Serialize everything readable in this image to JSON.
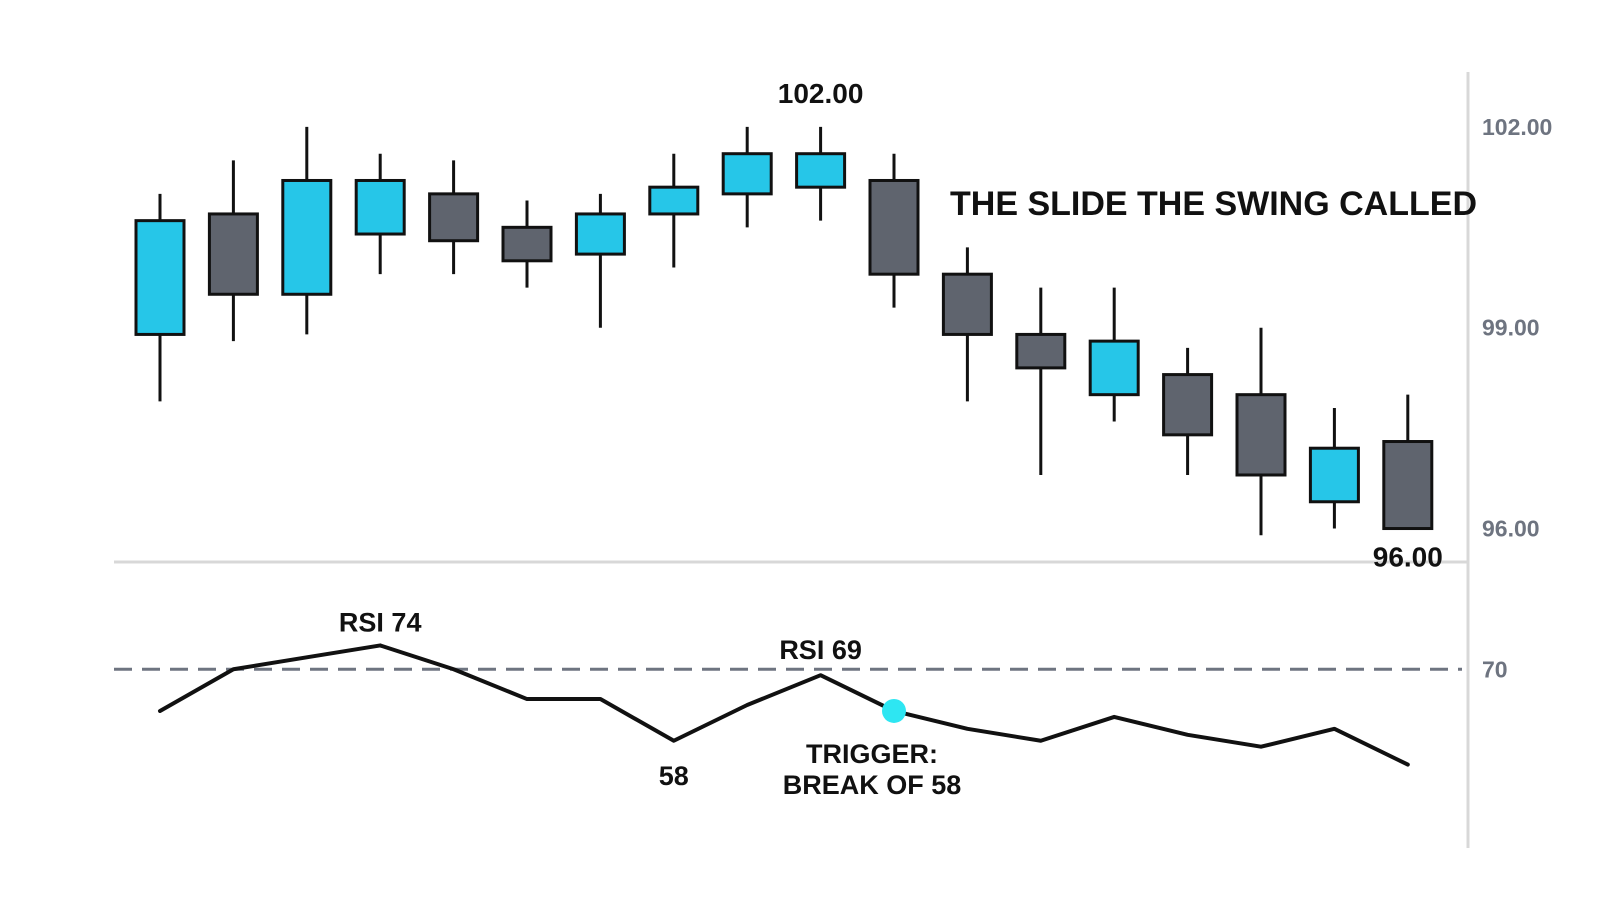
{
  "colors": {
    "bull": "#26c6e8",
    "bear": "#5f646e",
    "outline": "#111111",
    "rsi_line": "#111111",
    "threshold_line": "#6e7480",
    "marker": "#2ee6f2",
    "axis": "#d8d8d8",
    "tick_text": "#6e7480"
  },
  "chart_data": [
    {
      "type": "candlestick",
      "title": "THE SLIDE THE SWING CALLED",
      "x": [
        1,
        2,
        3,
        4,
        5,
        6,
        7,
        8,
        9,
        10,
        11,
        12,
        13,
        14,
        15,
        16,
        17,
        18
      ],
      "candles": [
        {
          "open": 98.9,
          "high": 101.0,
          "low": 97.9,
          "close": 100.6
        },
        {
          "open": 100.7,
          "high": 101.5,
          "low": 98.8,
          "close": 99.5
        },
        {
          "open": 99.5,
          "high": 102.0,
          "low": 98.9,
          "close": 101.2
        },
        {
          "open": 100.4,
          "high": 101.6,
          "low": 99.8,
          "close": 101.2
        },
        {
          "open": 101.0,
          "high": 101.5,
          "low": 99.8,
          "close": 100.3
        },
        {
          "open": 100.5,
          "high": 100.9,
          "low": 99.6,
          "close": 100.0
        },
        {
          "open": 100.1,
          "high": 101.0,
          "low": 99.0,
          "close": 100.7
        },
        {
          "open": 100.7,
          "high": 101.6,
          "low": 99.9,
          "close": 101.1
        },
        {
          "open": 101.0,
          "high": 102.0,
          "low": 100.5,
          "close": 101.6
        },
        {
          "open": 101.1,
          "high": 102.0,
          "low": 100.6,
          "close": 101.6
        },
        {
          "open": 101.2,
          "high": 101.6,
          "low": 99.3,
          "close": 99.8
        },
        {
          "open": 99.8,
          "high": 100.2,
          "low": 97.9,
          "close": 98.9
        },
        {
          "open": 98.9,
          "high": 99.6,
          "low": 96.8,
          "close": 98.4
        },
        {
          "open": 98.0,
          "high": 99.6,
          "low": 97.6,
          "close": 98.8
        },
        {
          "open": 98.3,
          "high": 98.7,
          "low": 96.8,
          "close": 97.4
        },
        {
          "open": 98.0,
          "high": 99.0,
          "low": 95.9,
          "close": 96.8
        },
        {
          "open": 96.4,
          "high": 97.8,
          "low": 96.0,
          "close": 97.2
        },
        {
          "open": 97.3,
          "high": 98.0,
          "low": 96.0,
          "close": 96.0
        }
      ],
      "yticks": [
        "102.00",
        "99.00",
        "96.00"
      ],
      "ytick_values": [
        102,
        99,
        96
      ],
      "ylim": [
        95.5,
        103.0
      ],
      "annotations": [
        {
          "text": "102.00",
          "x": 10,
          "y": 102.0
        },
        {
          "text": "96.00",
          "x": 18,
          "y": 96.0
        }
      ]
    },
    {
      "type": "line",
      "name": "RSI",
      "x": [
        1,
        2,
        3,
        4,
        5,
        6,
        7,
        8,
        9,
        10,
        11,
        12,
        13,
        14,
        15,
        16,
        17,
        18
      ],
      "values": [
        63,
        70,
        72,
        74,
        70,
        65,
        65,
        58,
        64,
        69,
        63,
        60,
        58,
        62,
        59,
        57,
        60,
        54
      ],
      "threshold": 70,
      "threshold_label": "70",
      "trigger": {
        "x": 11,
        "value": 63
      },
      "ylim": [
        40,
        88
      ],
      "annotations": [
        {
          "text": "RSI 74",
          "x": 4,
          "y": 74
        },
        {
          "text": "RSI 69",
          "x": 10,
          "y": 69
        },
        {
          "text": "58",
          "x": 8,
          "y": 58
        },
        {
          "line1": "TRIGGER:",
          "line2": "BREAK OF 58",
          "x": 11,
          "y": 63
        }
      ]
    }
  ]
}
